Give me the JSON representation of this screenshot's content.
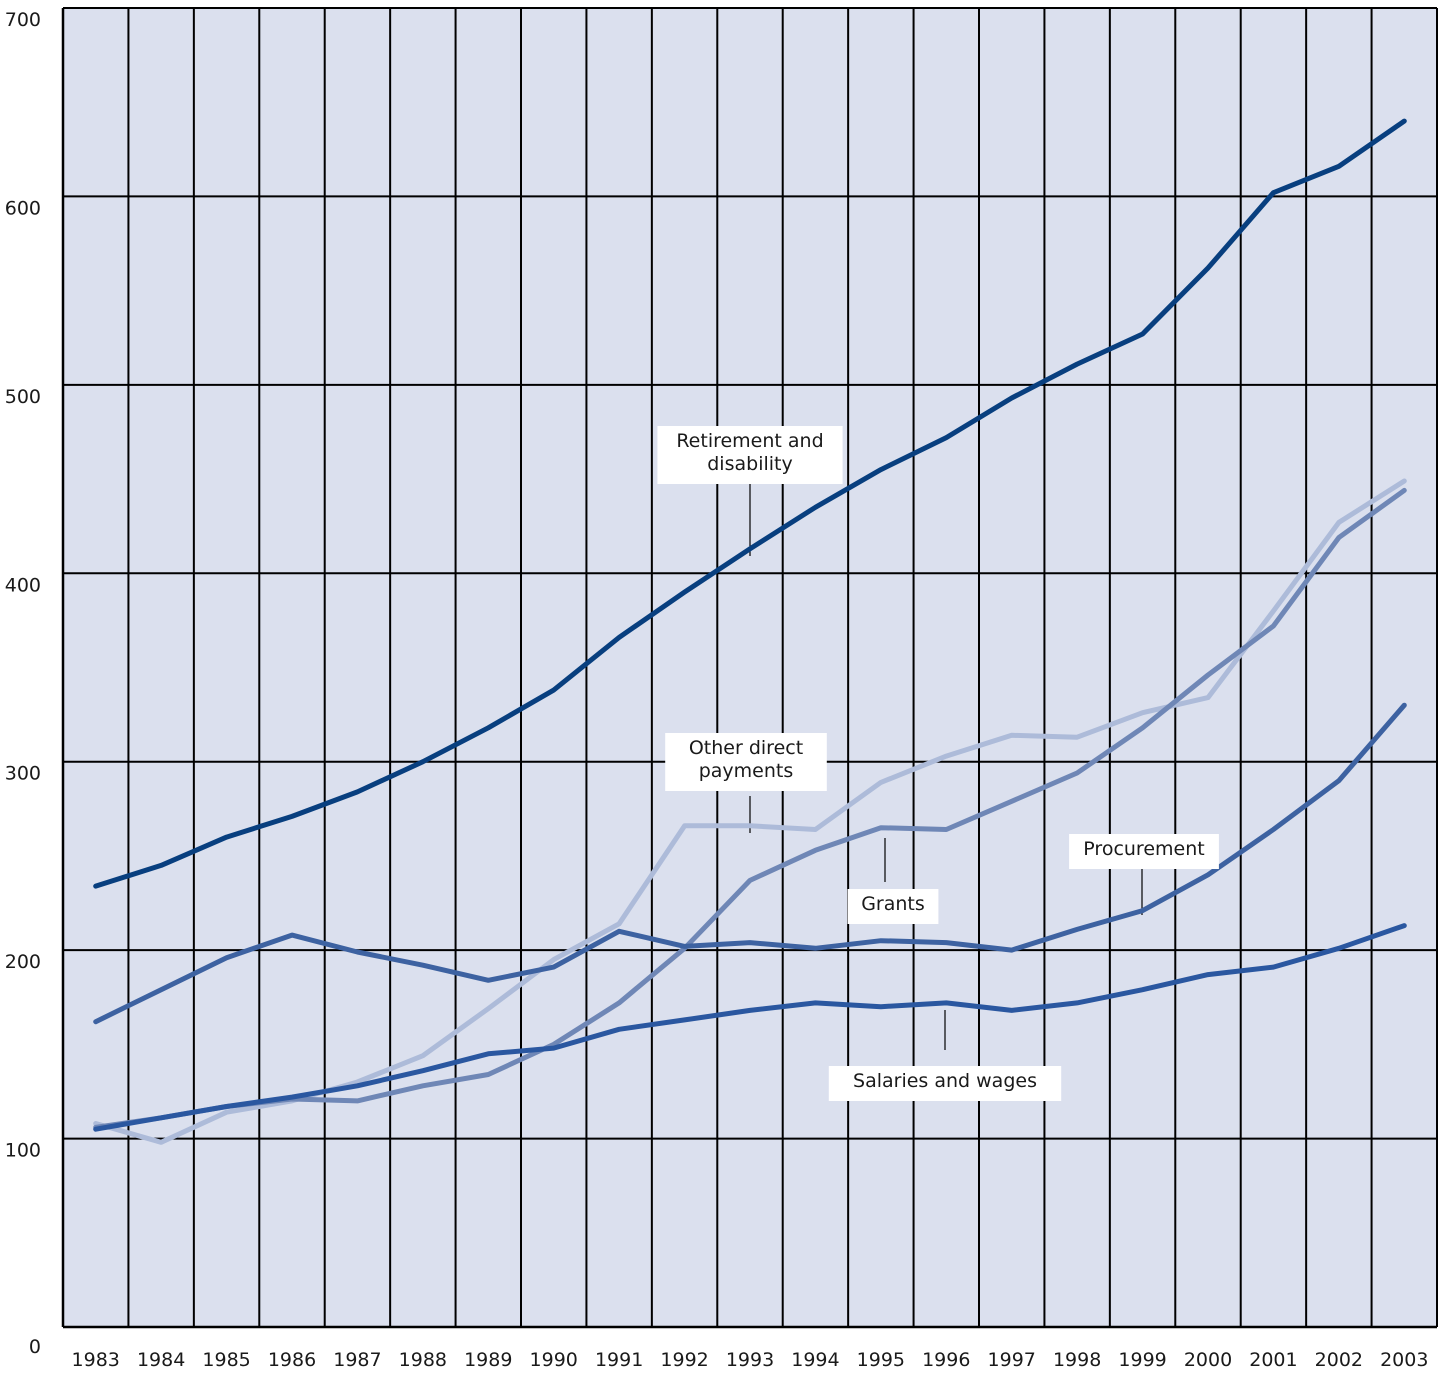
{
  "chart_data": {
    "type": "line",
    "x": [
      "1983",
      "1984",
      "1985",
      "1986",
      "1987",
      "1988",
      "1989",
      "1990",
      "1991",
      "1992",
      "1993",
      "1994",
      "1995",
      "1996",
      "1997",
      "1998",
      "1999",
      "2000",
      "2001",
      "2002",
      "2003"
    ],
    "ylim": [
      0,
      700
    ],
    "yticks": [
      "0",
      "100",
      "200",
      "300",
      "400",
      "500",
      "600",
      "700"
    ],
    "grid": true,
    "title": "",
    "xlabel": "",
    "ylabel": "",
    "series": [
      {
        "key": "retirement",
        "name": [
          "Retirement and",
          "disability"
        ],
        "color": "#083f7f",
        "values": [
          234,
          245,
          260,
          271,
          284,
          300,
          318,
          338,
          366,
          390,
          413,
          435,
          455,
          472,
          493,
          511,
          527,
          562,
          602,
          616,
          640
        ]
      },
      {
        "key": "other_direct",
        "name": [
          "Other direct",
          "payments"
        ],
        "color": "#adbbd9",
        "values": [
          108,
          98,
          114,
          120,
          130,
          144,
          169,
          195,
          214,
          266,
          266,
          264,
          289,
          303,
          314,
          313,
          326,
          334,
          380,
          427,
          449
        ]
      },
      {
        "key": "grants",
        "name": [
          "Grants"
        ],
        "color": "#6f87b6",
        "values": [
          106,
          111,
          117,
          121,
          120,
          128,
          134,
          150,
          172,
          201,
          237,
          253,
          265,
          264,
          279,
          294,
          318,
          346,
          372,
          419,
          444
        ]
      },
      {
        "key": "procurement",
        "name": [
          "Procurement"
        ],
        "color": "#3d62a1",
        "values": [
          162,
          179,
          196,
          208,
          199,
          192,
          184,
          191,
          210,
          202,
          204,
          201,
          205,
          204,
          200,
          211,
          221,
          240,
          264,
          290,
          330
        ]
      },
      {
        "key": "salaries",
        "name": [
          "Salaries and wages"
        ],
        "color": "#2a57a0",
        "values": [
          105,
          111,
          117,
          122,
          128,
          136,
          145,
          148,
          158,
          163,
          168,
          172,
          170,
          172,
          168,
          172,
          179,
          187,
          191,
          201,
          213
        ]
      }
    ]
  }
}
